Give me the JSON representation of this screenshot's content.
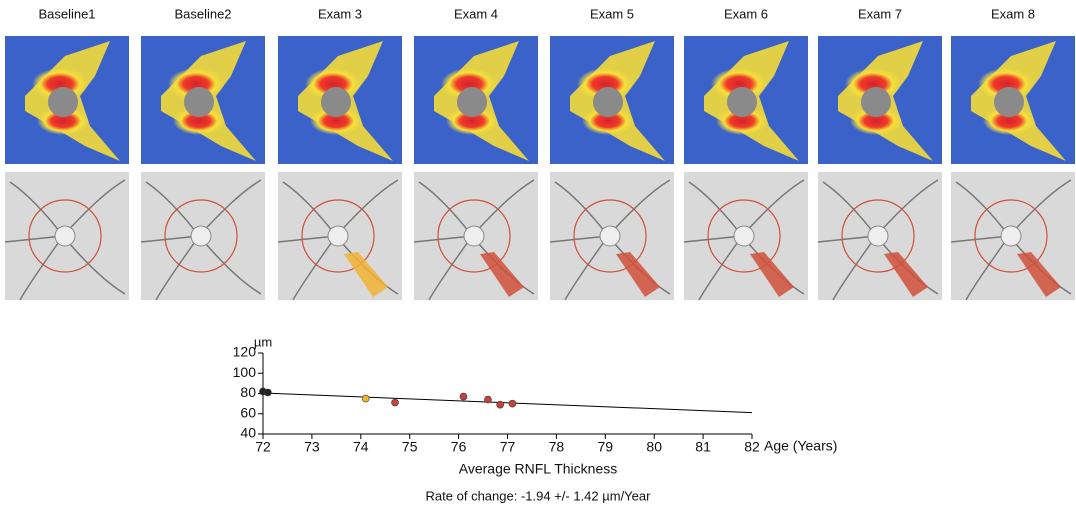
{
  "panels": {
    "labels": [
      "Baseline1",
      "Baseline2",
      "Exam 3",
      "Exam 4",
      "Exam 5",
      "Exam 6",
      "Exam 7",
      "Exam 8"
    ]
  },
  "chart_data": {
    "type": "scatter",
    "y_label": "µm",
    "x_label": "Age (Years)",
    "title": "Average RNFL Thickness",
    "subtitle": "Rate of change: -1.94 +/- 1.42 µm/Year",
    "series": [
      {
        "color": "#222222",
        "x": [
          72,
          72.1
        ],
        "values": [
          82,
          81
        ]
      },
      {
        "color": "#f2b233",
        "x": [
          74.1
        ],
        "values": [
          75
        ]
      },
      {
        "color": "#c8423a",
        "x": [
          74.7,
          76.1,
          76.6,
          76.85,
          77.1
        ],
        "values": [
          71,
          77,
          74,
          69,
          70
        ]
      }
    ],
    "trend": {
      "color": "#000000",
      "x": [
        72,
        82
      ],
      "values": [
        80.5,
        61.1
      ]
    },
    "xlim": [
      72,
      82
    ],
    "xticks": [
      72,
      73,
      74,
      75,
      76,
      77,
      78,
      79,
      80,
      81,
      82
    ],
    "ylim": [
      40,
      120
    ],
    "yticks": [
      40,
      60,
      80,
      100,
      120
    ]
  }
}
